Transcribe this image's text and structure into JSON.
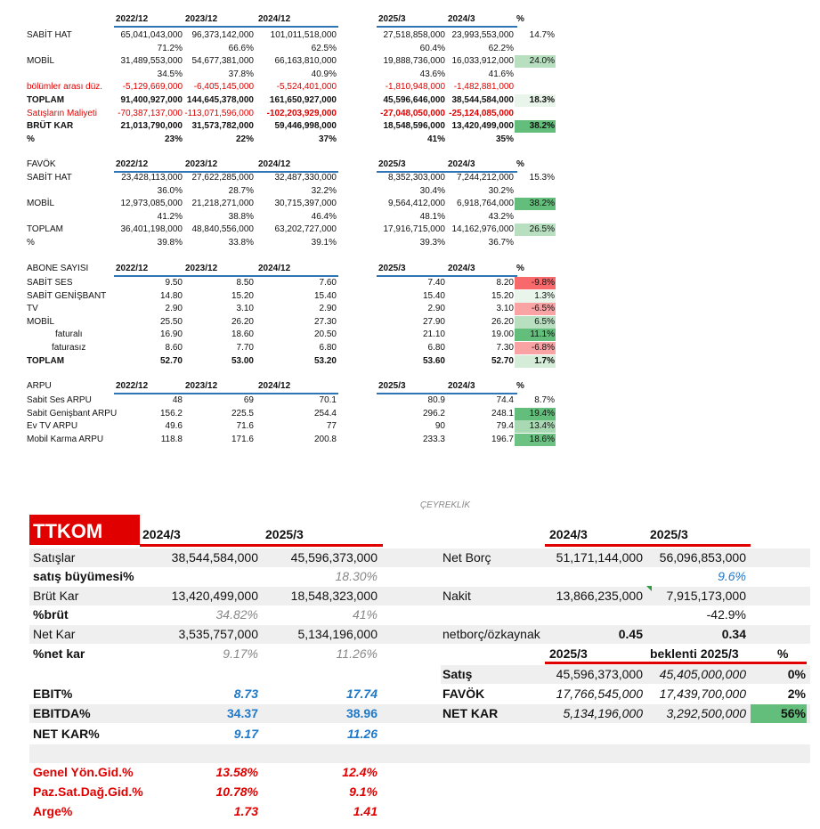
{
  "quarterly_tables": [
    {
      "headers": [
        "2022/12",
        "2023/12",
        "2024/12",
        "2025/3",
        "2024/3",
        "%"
      ],
      "rows": [
        [
          "SABİT HAT",
          "65,041,043,000",
          "96,373,142,000",
          "101,011,518,000",
          "27,518,858,000",
          "23,993,553,000",
          "14.7%"
        ],
        [
          null,
          "71.2%",
          "66.6%",
          "62.5%",
          "60.4%",
          "62.2%",
          null
        ],
        [
          "MOBİL",
          "31,489,553,000",
          "54,677,381,000",
          "66,163,810,000",
          "19,888,736,000",
          "16,033,912,000",
          "24.0%"
        ],
        [
          null,
          "34.5%",
          "37.8%",
          "40.9%",
          "43.6%",
          "41.6%",
          null
        ],
        [
          "bölümler arası düz.",
          "-5,129,669,000",
          "-6,405,145,000",
          "-5,524,401,000",
          "-1,810,948,000",
          "-1,482,881,000",
          null
        ],
        [
          "TOPLAM",
          "91,400,927,000",
          "144,645,378,000",
          "161,650,927,000",
          "45,596,646,000",
          "38,544,584,000",
          "18.3%"
        ],
        [
          "Satışların Maliyeti",
          "-70,387,137,000",
          "-113,071,596,000",
          "-102,203,929,000",
          "-27,048,050,000",
          "-25,124,085,000",
          null
        ],
        [
          "BRÜT KAR",
          "21,013,790,000",
          "31,573,782,000",
          "59,446,998,000",
          "18,548,596,000",
          "13,420,499,000",
          "38.2%"
        ],
        [
          "%",
          "23%",
          "22%",
          "37%",
          "41%",
          "35%",
          null
        ]
      ]
    },
    {
      "title": "FAVÖK",
      "headers": [
        "2022/12",
        "2023/12",
        "2024/12",
        "2025/3",
        "2024/3",
        "%"
      ],
      "rows": [
        [
          "SABİT HAT",
          "23,428,113,000",
          "27,622,285,000",
          "32,487,330,000",
          "8,352,303,000",
          "7,244,212,000",
          "15.3%"
        ],
        [
          null,
          "36.0%",
          "28.7%",
          "32.2%",
          "30.4%",
          "30.2%",
          null
        ],
        [
          "MOBİL",
          "12,973,085,000",
          "21,218,271,000",
          "30,715,397,000",
          "9,564,412,000",
          "6,918,764,000",
          "38.2%"
        ],
        [
          null,
          "41.2%",
          "38.8%",
          "46.4%",
          "48.1%",
          "43.2%",
          null
        ],
        [
          "TOPLAM",
          "36,401,198,000",
          "48,840,556,000",
          "63,202,727,000",
          "17,916,715,000",
          "14,162,976,000",
          "26.5%"
        ],
        [
          "%",
          "39.8%",
          "33.8%",
          "39.1%",
          "39.3%",
          "36.7%",
          null
        ]
      ]
    },
    {
      "title": "ABONE SAYISI",
      "headers": [
        "2022/12",
        "2023/12",
        "2024/12",
        "2025/3",
        "2024/3",
        "%"
      ],
      "rows": [
        [
          "SABİT SES",
          "9.50",
          "8.50",
          "7.60",
          "7.40",
          "8.20",
          "-9.8%"
        ],
        [
          "SABİT GENİŞBANT",
          "14.80",
          "15.20",
          "15.40",
          "15.40",
          "15.20",
          "1.3%"
        ],
        [
          "TV",
          "2.90",
          "3.10",
          "2.90",
          "2.90",
          "3.10",
          "-6.5%"
        ],
        [
          "MOBİL",
          "25.50",
          "26.20",
          "27.30",
          "27.90",
          "26.20",
          "6.5%"
        ],
        [
          "faturalı",
          "16.90",
          "18.60",
          "20.50",
          "21.10",
          "19.00",
          "11.1%"
        ],
        [
          "faturasız",
          "8.60",
          "7.70",
          "6.80",
          "6.80",
          "7.30",
          "-6.8%"
        ],
        [
          "TOPLAM",
          "52.70",
          "53.00",
          "53.20",
          "53.60",
          "52.70",
          "1.7%"
        ]
      ]
    },
    {
      "title": "ARPU",
      "headers": [
        "2022/12",
        "2023/12",
        "2024/12",
        "2025/3",
        "2024/3",
        "%"
      ],
      "rows": [
        [
          "Sabit Ses ARPU",
          "48",
          "69",
          "70.1",
          "80.9",
          "74.4",
          "8.7%"
        ],
        [
          "Sabit Genişbant ARPU",
          "156.2",
          "225.5",
          "254.4",
          "296.2",
          "248.1",
          "19.4%"
        ],
        [
          "Ev TV ARPU",
          "49.6",
          "71.6",
          "77",
          "90",
          "79.4",
          "13.4%"
        ],
        [
          "Mobil Karma ARPU",
          "118.8",
          "171.6",
          "200.8",
          "233.3",
          "196.7",
          "18.6%"
        ]
      ]
    }
  ],
  "summary": {
    "heading": "ÇEYREKLİK",
    "ticker": "TTKOM",
    "left_headers": [
      "2024/3",
      "2025/3"
    ],
    "left_rows": [
      [
        "Satışlar",
        "38,544,584,000",
        "45,596,373,000"
      ],
      [
        "satış büyümesi%",
        null,
        "18.30%"
      ],
      [
        "Brüt Kar",
        "13,420,499,000",
        "18,548,323,000"
      ],
      [
        "%brüt",
        "34.82%",
        "41%"
      ],
      [
        "Net Kar",
        "3,535,757,000",
        "5,134,196,000"
      ],
      [
        "%net kar",
        "9.17%",
        "11.26%"
      ],
      [
        "EBIT%",
        "8.73",
        "17.74"
      ],
      [
        "EBITDA%",
        "34.37",
        "38.96"
      ],
      [
        "NET KAR%",
        "9.17",
        "11.26"
      ],
      [
        "Genel Yön.Gid.%",
        "13.58%",
        "12.4%"
      ],
      [
        "Paz.Sat.Dağ.Gid.%",
        "10.78%",
        "9.1%"
      ],
      [
        "Arge%",
        "1.73",
        "1.41"
      ]
    ],
    "right_headers": [
      "2024/3",
      "2025/3"
    ],
    "right_rows": [
      [
        "Net Borç",
        "51,171,144,000",
        "56,096,853,000"
      ],
      [
        null,
        null,
        "9.6%"
      ],
      [
        "Nakit",
        "13,866,235,000",
        "7,915,173,000"
      ],
      [
        null,
        null,
        "-42.9%"
      ],
      [
        "netborç/özkaynak",
        "0.45",
        "0.34"
      ]
    ],
    "forecast_headers": [
      "2025/3",
      "beklenti 2025/3",
      "%"
    ],
    "forecast_rows": [
      [
        "Satış",
        "45,596,373,000",
        "45,405,000,000",
        "0%"
      ],
      [
        "FAVÖK",
        "17,766,545,000",
        "17,439,700,000",
        "2%"
      ],
      [
        "NET KAR",
        "5,134,196,000",
        "3,292,500,000",
        "56%"
      ]
    ]
  }
}
